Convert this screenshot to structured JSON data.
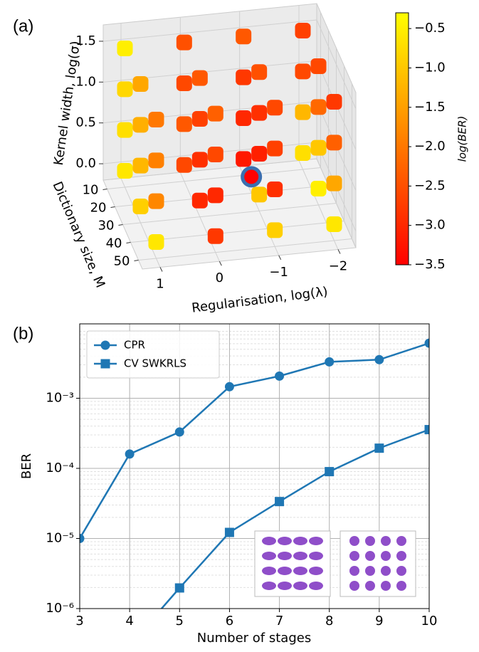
{
  "chart_data": [
    {
      "type": "scatter3d",
      "panel_label": "(a)",
      "xlabel": "Regularisation, log(λ)",
      "ylabel": "Dictionary size, M",
      "zlabel": "Kernel width, log(σ)",
      "colorbar_label": "log(BER)",
      "xlim": [
        1.3,
        -2.3
      ],
      "ylim": [
        5,
        55
      ],
      "zlim": [
        -0.2,
        1.7
      ],
      "xticks": [
        1,
        0,
        {
          "value": -1,
          "label": "−1"
        },
        {
          "value": -2,
          "label": "−2"
        }
      ],
      "yticks": [
        10,
        20,
        30,
        40,
        50
      ],
      "zticks": [
        {
          "value": 0,
          "label": "0.0"
        },
        0.5,
        {
          "value": 1,
          "label": "1.0"
        },
        1.5
      ],
      "clim": [
        -3.5,
        -0.3
      ],
      "colormap": [
        "#ff0000",
        "#ffff00"
      ],
      "cticks": [
        {
          "value": -0.5,
          "label": "−0.5"
        },
        {
          "value": -1,
          "label": "−1.0"
        },
        {
          "value": -1.5,
          "label": "−1.5"
        },
        {
          "value": -2,
          "label": "−2.0"
        },
        {
          "value": -2.5,
          "label": "−2.5"
        },
        {
          "value": -3,
          "label": "−3.0"
        },
        {
          "value": -3.5,
          "label": "−3.5"
        }
      ],
      "x": [
        1,
        0,
        -1,
        -2,
        1,
        0,
        -1,
        -2,
        1,
        0,
        -1,
        -2,
        1,
        0,
        -1,
        -2,
        1,
        0,
        -1,
        -2,
        1,
        0,
        -1,
        -2,
        1,
        0,
        -1,
        -2,
        1,
        0,
        -1,
        -2,
        1,
        0,
        -1,
        -2,
        1,
        0,
        -1,
        -2,
        1,
        0,
        -1,
        -2,
        1,
        0,
        -1,
        -2
      ],
      "y": [
        10,
        10,
        10,
        10,
        10,
        10,
        10,
        10,
        10,
        10,
        10,
        10,
        10,
        10,
        10,
        10,
        30,
        30,
        30,
        30,
        30,
        30,
        30,
        30,
        30,
        30,
        30,
        30,
        30,
        30,
        30,
        30,
        50,
        50,
        50,
        50,
        50,
        50,
        50,
        50,
        50,
        50,
        50,
        50,
        50,
        50,
        50,
        50
      ],
      "z": [
        1.5,
        1.5,
        1.5,
        1.5,
        1,
        1,
        1,
        1,
        0.5,
        0.5,
        0.5,
        0.5,
        0,
        0,
        0,
        0,
        1.5,
        1.5,
        1.5,
        1.5,
        1,
        1,
        1,
        1,
        0.5,
        0.5,
        0.5,
        0.5,
        0,
        0,
        0,
        0,
        1.5,
        1.5,
        1.5,
        1.5,
        1,
        1,
        1,
        1,
        0.5,
        0.5,
        0.5,
        0.5,
        0,
        0,
        0,
        0
      ],
      "c": [
        -0.5,
        -2.5,
        -2.4,
        -2.7,
        -0.8,
        -2.6,
        -2.8,
        -2.6,
        -0.7,
        -2.4,
        -3.0,
        -1.2,
        -0.6,
        -2.6,
        -3.2,
        -0.7,
        -1.4,
        -2.4,
        -2.5,
        -2.6,
        -1.3,
        -2.7,
        -2.9,
        -2.2,
        -1.2,
        -2.9,
        -3.1,
        -1.0,
        -0.9,
        -3.0,
        -1.0,
        -0.5,
        -2.0,
        -2.3,
        -2.6,
        -2.8,
        -1.9,
        -2.6,
        -2.7,
        -2.3,
        -1.8,
        -3.0,
        -2.9,
        -1.4,
        -0.6,
        -2.8,
        -0.9,
        -0.6
      ],
      "highlight": {
        "x": -1,
        "y": 20,
        "z": 0,
        "c": -3.5,
        "color": "#3a6fb0"
      }
    },
    {
      "type": "line",
      "panel_label": "(b)",
      "xlabel": "Number of stages",
      "ylabel": "BER",
      "log_y": true,
      "grid": true,
      "legend": "upper left",
      "x": [
        3,
        4,
        5,
        6,
        7,
        8,
        9,
        10
      ],
      "xlim": [
        3,
        10
      ],
      "xticks": [
        3,
        4,
        5,
        6,
        7,
        8,
        9,
        10
      ],
      "ylim": [
        1e-06,
        0.0115
      ],
      "yticks": [
        {
          "value": 1e-06,
          "label": "10⁻⁶"
        },
        {
          "value": 1e-05,
          "label": "10⁻⁵"
        },
        {
          "value": 0.0001,
          "label": "10⁻⁴"
        },
        {
          "value": 0.001,
          "label": "10⁻³"
        }
      ],
      "series": [
        {
          "name": "CPR",
          "color": "#1f77b4",
          "marker": "circle",
          "values": [
            1e-05,
            0.00016,
            0.00033,
            0.00146,
            0.00207,
            0.0033,
            0.00355,
            0.0061
          ]
        },
        {
          "name": "CV SWKRLS",
          "color": "#1f77b4",
          "marker": "square",
          "values": [
            null,
            3e-07,
            1.97e-06,
            1.22e-05,
            3.36e-05,
            8.98e-05,
            0.000194,
            0.000357
          ]
        }
      ]
    }
  ]
}
